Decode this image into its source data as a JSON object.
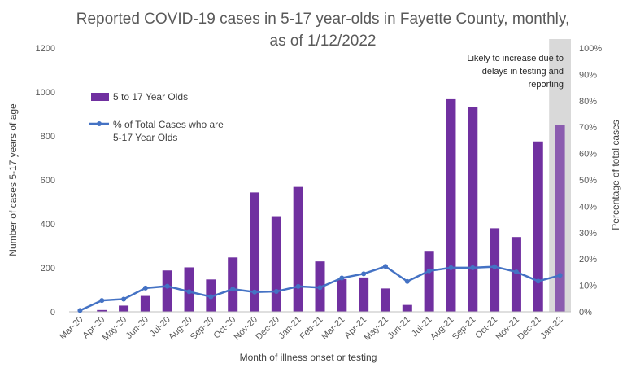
{
  "chart_data": {
    "type": "bar",
    "title_line1": "Reported COVID-19 cases in 5-17 year-olds in Fayette County, monthly,",
    "title_line2": "as of 1/12/2022",
    "xlabel": "Month of illness onset or testing",
    "ylabel": "Number of cases 5-17 years of age",
    "y2label": "Percentage of total cases",
    "ylim": [
      0,
      1200
    ],
    "y2lim": [
      0,
      100
    ],
    "yticks": [
      "0",
      "200",
      "400",
      "600",
      "800",
      "1000",
      "1200"
    ],
    "y2ticks": [
      "0%",
      "10%",
      "20%",
      "30%",
      "40%",
      "50%",
      "60%",
      "70%",
      "80%",
      "90%",
      "100%"
    ],
    "categories": [
      "Mar-20",
      "Apr-20",
      "May-20",
      "Jun-20",
      "Jul-20",
      "Aug-20",
      "Sep-20",
      "Oct-20",
      "Nov-20",
      "Dec-20",
      "Jan-21",
      "Feb-21",
      "Mar-21",
      "Apr-21",
      "May-21",
      "Jun-21",
      "Jul-21",
      "Aug-21",
      "Sep-21",
      "Oct-21",
      "Nov-21",
      "Dec-21",
      "Jan-22"
    ],
    "series": [
      {
        "name": "5 to 17 Year Olds",
        "type": "bar",
        "axis": "left",
        "color": "#7030A0",
        "values": [
          2,
          8,
          28,
          72,
          188,
          202,
          147,
          247,
          543,
          435,
          568,
          229,
          149,
          156,
          106,
          31,
          277,
          967,
          931,
          380,
          340,
          775,
          849
        ]
      },
      {
        "name": "% of Total Cases who are 5-17 Year Olds",
        "name_line1": "% of Total Cases who are",
        "name_line2": "5-17 Year Olds",
        "type": "line",
        "axis": "right",
        "color": "#4472C4",
        "values": [
          0.5,
          4.3,
          4.8,
          9.0,
          9.7,
          7.6,
          5.7,
          8.6,
          7.5,
          7.7,
          9.6,
          9.2,
          12.8,
          14.4,
          17.2,
          11.5,
          15.5,
          16.7,
          16.7,
          17.1,
          15.1,
          11.6,
          13.8
        ]
      }
    ],
    "highlight": {
      "category": "Jan-22",
      "color": "#D9D9D9",
      "bar_color": "#8B5CAF",
      "note": [
        "Likely to increase due to",
        "delays in testing and",
        "reporting"
      ]
    },
    "legend_position": "upper-left"
  }
}
